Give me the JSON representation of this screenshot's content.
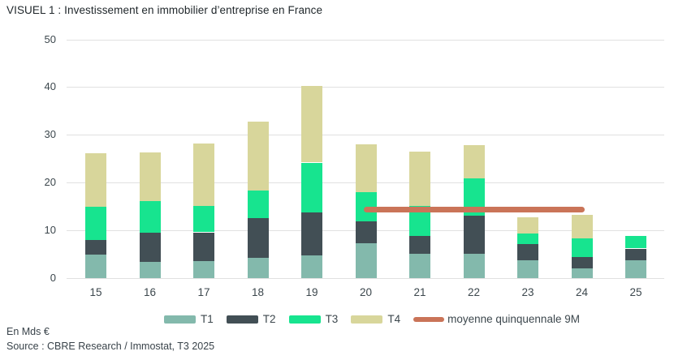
{
  "footer": {
    "unit": "En Mds €",
    "source": "Source : CBRE Research / Immostat, T3 2025"
  },
  "colors": {
    "t1": "#83b9ac",
    "t2": "#424f55",
    "t3": "#17e48f",
    "t4": "#d8d69b",
    "line": "#ca7458",
    "grid": "#e1e1e1"
  },
  "chart_data": {
    "type": "bar",
    "stacked": true,
    "title": "VISUEL 1 : Investissement en immobilier d’entreprise en France",
    "unit": "En Mds €",
    "categories": [
      "15",
      "16",
      "17",
      "18",
      "19",
      "20",
      "21",
      "22",
      "23",
      "24",
      "25"
    ],
    "series": [
      {
        "name": "T1",
        "color_key": "t1",
        "values": [
          5.0,
          3.4,
          3.6,
          4.3,
          4.7,
          7.3,
          5.1,
          5.1,
          3.7,
          2.1,
          3.8
        ]
      },
      {
        "name": "T2",
        "color_key": "t2",
        "values": [
          3.0,
          6.1,
          6.0,
          8.3,
          9.0,
          4.6,
          3.8,
          7.9,
          3.4,
          2.3,
          2.4
        ]
      },
      {
        "name": "T3",
        "color_key": "t3",
        "values": [
          7.0,
          6.7,
          5.5,
          5.7,
          10.5,
          6.1,
          6.2,
          7.9,
          2.2,
          4.0,
          2.7
        ]
      },
      {
        "name": "T4",
        "color_key": "t4",
        "values": [
          11.2,
          10.1,
          13.1,
          14.5,
          16.0,
          10.1,
          11.4,
          7.0,
          3.5,
          4.9,
          0
        ]
      }
    ],
    "totals": [
      26.2,
      26.3,
      28.2,
      32.8,
      40.2,
      28.1,
      26.5,
      27.9,
      12.8,
      13.3,
      8.9
    ],
    "reference_line": {
      "label": "moyenne quinquennale 9M",
      "value": 14.3,
      "x_start_category": "20",
      "x_end_category": "24"
    },
    "xlabel": "",
    "ylabel": "",
    "ylim": [
      0,
      50
    ],
    "yticks": [
      0,
      10,
      20,
      30,
      40,
      50
    ],
    "grid": true,
    "legend_position": "bottom"
  }
}
